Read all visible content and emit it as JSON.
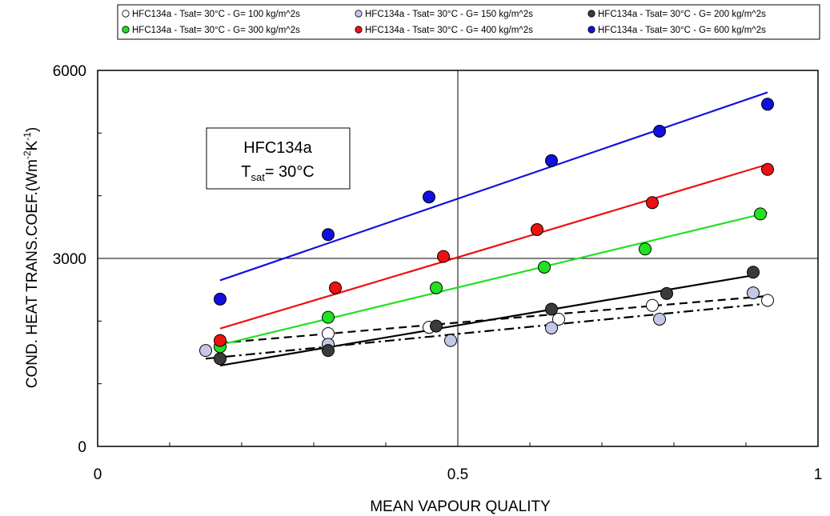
{
  "chart_data": {
    "type": "scatter",
    "xlabel": "MEAN VAPOUR QUALITY",
    "ylabel": {
      "prefix": "COND. HEAT TRANS.COEF.(Wm",
      "sup1": "-2",
      "mid": "K",
      "sup2": "-1",
      "suffix": ")"
    },
    "xlim": [
      0,
      1
    ],
    "ylim": [
      0,
      6000
    ],
    "x_ticks": [
      "0",
      "0.5",
      "1"
    ],
    "y_ticks": [
      "0",
      "3000",
      "6000"
    ],
    "x_tick_values": [
      0,
      0.5,
      1
    ],
    "y_tick_values": [
      0,
      3000,
      6000
    ],
    "x_minor_ticks": [
      0.1,
      0.2,
      0.3,
      0.4,
      0.6,
      0.7,
      0.8,
      0.9
    ],
    "y_minor_ticks": [
      1000,
      2000,
      4000,
      5000
    ],
    "grid_x": [
      0.5
    ],
    "grid_y": [
      3000
    ],
    "legend_position": "top",
    "annotation": {
      "line1": "HFC134a",
      "line2_main": "T",
      "line2_sub": "sat",
      "line2_rest": "= 30°C"
    },
    "series": [
      {
        "name": "HFC134a - Tsat= 30°C - G= 100 kg/m^2s",
        "fill": "#ffffff",
        "line_color": "#000000",
        "line_style": "dashed",
        "x": [
          0.32,
          0.46,
          0.64,
          0.77,
          0.93
        ],
        "y": [
          1800,
          1900,
          2030,
          2250,
          2330
        ],
        "fit_x": [
          0.17,
          0.93
        ],
        "fit_y": [
          1650,
          2400
        ]
      },
      {
        "name": "HFC134a - Tsat= 30°C - G= 150 kg/m^2s",
        "fill": "#c4c8e8",
        "line_color": "#000000",
        "line_style": "dashdot",
        "x": [
          0.15,
          0.32,
          0.49,
          0.63,
          0.78,
          0.91
        ],
        "y": [
          1530,
          1630,
          1690,
          1890,
          2030,
          2450
        ],
        "fit_x": [
          0.15,
          0.93
        ],
        "fit_y": [
          1400,
          2280
        ]
      },
      {
        "name": "HFC134a - Tsat= 30°C - G= 200 kg/m^2s",
        "fill": "#3a3a3a",
        "line_color": "#000000",
        "line_style": "solid",
        "x": [
          0.17,
          0.32,
          0.47,
          0.63,
          0.79,
          0.91
        ],
        "y": [
          1400,
          1530,
          1920,
          2190,
          2440,
          2780
        ],
        "fit_x": [
          0.17,
          0.91
        ],
        "fit_y": [
          1290,
          2730
        ]
      },
      {
        "name": "HFC134a - Tsat= 30°C - G= 300 kg/m^2s",
        "fill": "#22e022",
        "line_color": "#22e022",
        "line_style": "solid",
        "x": [
          0.17,
          0.32,
          0.47,
          0.62,
          0.76,
          0.92
        ],
        "y": [
          1590,
          2060,
          2530,
          2860,
          3150,
          3710
        ],
        "fit_x": [
          0.17,
          0.93
        ],
        "fit_y": [
          1620,
          3730
        ]
      },
      {
        "name": "HFC134a - Tsat= 30°C - G= 400 kg/m^2s",
        "fill": "#ee1111",
        "line_color": "#ee1111",
        "line_style": "solid",
        "x": [
          0.17,
          0.33,
          0.48,
          0.61,
          0.77,
          0.93
        ],
        "y": [
          1690,
          2530,
          3030,
          3460,
          3890,
          4420
        ],
        "fit_x": [
          0.17,
          0.93
        ],
        "fit_y": [
          1880,
          4500
        ]
      },
      {
        "name": "HFC134a - Tsat= 30°C - G= 600 kg/m^2s",
        "fill": "#1111dd",
        "line_color": "#1111dd",
        "line_style": "solid",
        "x": [
          0.17,
          0.32,
          0.46,
          0.63,
          0.78,
          0.93
        ],
        "y": [
          2350,
          3380,
          3980,
          4560,
          5030,
          5460
        ],
        "fit_x": [
          0.17,
          0.93
        ],
        "fit_y": [
          2650,
          5650
        ]
      }
    ]
  }
}
